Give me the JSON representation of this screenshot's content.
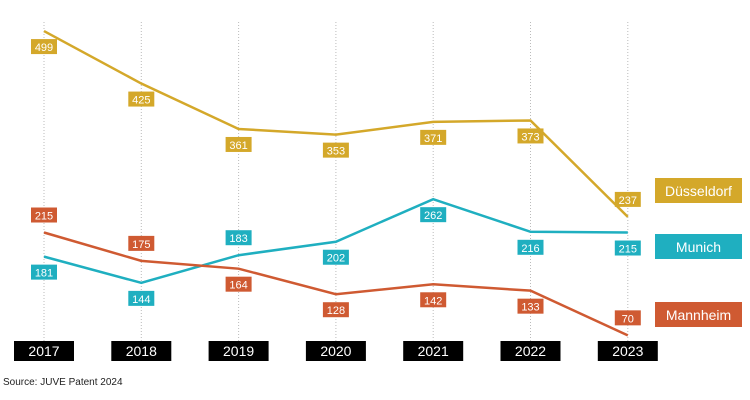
{
  "chart_data": {
    "type": "line",
    "x": [
      "2017",
      "2018",
      "2019",
      "2020",
      "2021",
      "2022",
      "2023"
    ],
    "series": [
      {
        "name": "Düsseldorf",
        "color": "#D4A82A",
        "values": [
          499,
          425,
          361,
          353,
          371,
          373,
          237
        ]
      },
      {
        "name": "Munich",
        "color": "#1FAFC0",
        "values": [
          181,
          144,
          183,
          202,
          262,
          216,
          215
        ]
      },
      {
        "name": "Mannheim",
        "color": "#CF5A32",
        "values": [
          215,
          175,
          164,
          128,
          142,
          133,
          70
        ]
      }
    ],
    "ylim": [
      0,
      540
    ],
    "grid": "vertical dotted",
    "legend": "right",
    "data_labels": true,
    "source": "Source: JUVE Patent 2024"
  }
}
